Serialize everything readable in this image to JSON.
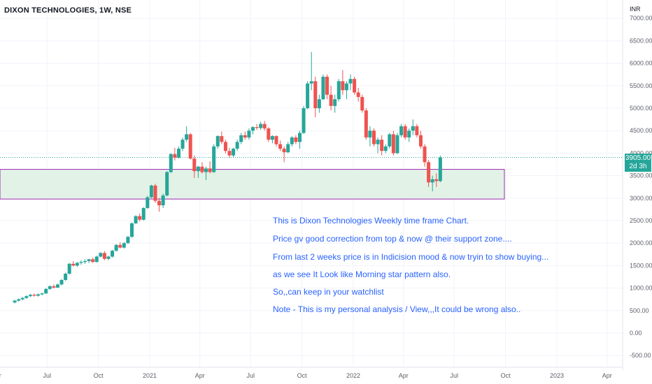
{
  "header": {
    "symbol_title": "DIXON TECHNOLOGIES, 1W, NSE"
  },
  "currency_label": "INR",
  "price_tag": {
    "price": "3905.00",
    "countdown": "2d 3h"
  },
  "annotations": [
    "This is Dixon Technologies Weekly time frame Chart.",
    "Price gv good correction from top & now @ their support zone....",
    "From last 2 weeks price is in Indicision mood & now tryin to show buying...",
    "as we see It Look like Morning star pattern also.",
    "So,,can keep in your watchlist",
    "Note - This is my personal analysis / View,,,It could be wrong also.."
  ],
  "colors": {
    "up": "#26a69a",
    "down": "#ef5350",
    "zone_fill": "#e3f2e6",
    "zone_border": "#9c27b0",
    "annotation": "#2962ff",
    "last_price_line": "#26a69a"
  },
  "chart_data": {
    "type": "candlestick",
    "interval": "1W",
    "currency": "INR",
    "y_ticks": [
      "7000.00",
      "6500.00",
      "6000.00",
      "5500.00",
      "5000.00",
      "4500.00",
      "4000.00",
      "3500.00",
      "3000.00",
      "2500.00",
      "2000.00",
      "1500.00",
      "1000.00",
      "500.00",
      "0.00",
      "-500.00"
    ],
    "x_ticks": [
      "Apr",
      "Jul",
      "Oct",
      "2021",
      "Apr",
      "Jul",
      "Oct",
      "2022",
      "Apr",
      "Jul",
      "Oct",
      "2023",
      "Apr"
    ],
    "ylim": [
      -700,
      7250
    ],
    "support_zone": {
      "low": 2980,
      "high": 3640
    },
    "last_price": 3905,
    "candles": [
      {
        "t": "2020-05-04",
        "o": 680,
        "h": 740,
        "l": 660,
        "c": 720
      },
      {
        "t": "2020-05-11",
        "o": 720,
        "h": 770,
        "l": 700,
        "c": 750
      },
      {
        "t": "2020-05-18",
        "o": 750,
        "h": 800,
        "l": 730,
        "c": 780
      },
      {
        "t": "2020-05-25",
        "o": 780,
        "h": 840,
        "l": 760,
        "c": 820
      },
      {
        "t": "2020-06-01",
        "o": 820,
        "h": 870,
        "l": 800,
        "c": 850
      },
      {
        "t": "2020-06-08",
        "o": 850,
        "h": 880,
        "l": 810,
        "c": 830
      },
      {
        "t": "2020-06-15",
        "o": 830,
        "h": 880,
        "l": 810,
        "c": 860
      },
      {
        "t": "2020-06-22",
        "o": 860,
        "h": 900,
        "l": 840,
        "c": 880
      },
      {
        "t": "2020-06-29",
        "o": 880,
        "h": 1000,
        "l": 870,
        "c": 980
      },
      {
        "t": "2020-07-06",
        "o": 980,
        "h": 1060,
        "l": 960,
        "c": 1040
      },
      {
        "t": "2020-07-13",
        "o": 1040,
        "h": 1080,
        "l": 990,
        "c": 1010
      },
      {
        "t": "2020-07-20",
        "o": 1010,
        "h": 1100,
        "l": 1000,
        "c": 1080
      },
      {
        "t": "2020-07-27",
        "o": 1080,
        "h": 1200,
        "l": 1060,
        "c": 1180
      },
      {
        "t": "2020-08-03",
        "o": 1180,
        "h": 1340,
        "l": 1160,
        "c": 1320
      },
      {
        "t": "2020-08-10",
        "o": 1320,
        "h": 1560,
        "l": 1300,
        "c": 1540
      },
      {
        "t": "2020-08-17",
        "o": 1540,
        "h": 1600,
        "l": 1480,
        "c": 1500
      },
      {
        "t": "2020-08-24",
        "o": 1500,
        "h": 1580,
        "l": 1470,
        "c": 1560
      },
      {
        "t": "2020-08-31",
        "o": 1560,
        "h": 1620,
        "l": 1520,
        "c": 1580
      },
      {
        "t": "2020-09-07",
        "o": 1580,
        "h": 1640,
        "l": 1540,
        "c": 1600
      },
      {
        "t": "2020-09-14",
        "o": 1600,
        "h": 1650,
        "l": 1560,
        "c": 1640
      },
      {
        "t": "2020-09-21",
        "o": 1640,
        "h": 1680,
        "l": 1560,
        "c": 1580
      },
      {
        "t": "2020-09-28",
        "o": 1580,
        "h": 1720,
        "l": 1570,
        "c": 1700
      },
      {
        "t": "2020-10-05",
        "o": 1700,
        "h": 1800,
        "l": 1680,
        "c": 1780
      },
      {
        "t": "2020-10-12",
        "o": 1780,
        "h": 1820,
        "l": 1620,
        "c": 1650
      },
      {
        "t": "2020-10-19",
        "o": 1650,
        "h": 1720,
        "l": 1620,
        "c": 1700
      },
      {
        "t": "2020-10-26",
        "o": 1700,
        "h": 1850,
        "l": 1680,
        "c": 1830
      },
      {
        "t": "2020-11-02",
        "o": 1830,
        "h": 1980,
        "l": 1810,
        "c": 1960
      },
      {
        "t": "2020-11-09",
        "o": 1960,
        "h": 2020,
        "l": 1880,
        "c": 1900
      },
      {
        "t": "2020-11-16",
        "o": 1900,
        "h": 2020,
        "l": 1880,
        "c": 2000
      },
      {
        "t": "2020-11-23",
        "o": 2000,
        "h": 2160,
        "l": 1980,
        "c": 2140
      },
      {
        "t": "2020-11-30",
        "o": 2140,
        "h": 2460,
        "l": 2120,
        "c": 2440
      },
      {
        "t": "2020-12-07",
        "o": 2440,
        "h": 2620,
        "l": 2420,
        "c": 2600
      },
      {
        "t": "2020-12-14",
        "o": 2600,
        "h": 2660,
        "l": 2480,
        "c": 2520
      },
      {
        "t": "2020-12-21",
        "o": 2520,
        "h": 2800,
        "l": 2500,
        "c": 2780
      },
      {
        "t": "2020-12-28",
        "o": 2780,
        "h": 3050,
        "l": 2760,
        "c": 3020
      },
      {
        "t": "2021-01-04",
        "o": 3020,
        "h": 3300,
        "l": 3000,
        "c": 3280
      },
      {
        "t": "2021-01-11",
        "o": 3280,
        "h": 3320,
        "l": 2900,
        "c": 2940
      },
      {
        "t": "2021-01-18",
        "o": 2940,
        "h": 3000,
        "l": 2700,
        "c": 2840
      },
      {
        "t": "2021-01-25",
        "o": 2840,
        "h": 3100,
        "l": 2780,
        "c": 3060
      },
      {
        "t": "2021-02-01",
        "o": 3060,
        "h": 3600,
        "l": 3040,
        "c": 3580
      },
      {
        "t": "2021-02-08",
        "o": 3580,
        "h": 4000,
        "l": 3560,
        "c": 3980
      },
      {
        "t": "2021-02-15",
        "o": 3980,
        "h": 4120,
        "l": 3840,
        "c": 3900
      },
      {
        "t": "2021-02-22",
        "o": 3900,
        "h": 4150,
        "l": 3880,
        "c": 4100
      },
      {
        "t": "2021-03-01",
        "o": 4100,
        "h": 4350,
        "l": 4050,
        "c": 4300
      },
      {
        "t": "2021-03-08",
        "o": 4300,
        "h": 4600,
        "l": 4250,
        "c": 4420
      },
      {
        "t": "2021-03-15",
        "o": 4420,
        "h": 4450,
        "l": 3860,
        "c": 3880
      },
      {
        "t": "2021-03-22",
        "o": 3880,
        "h": 3950,
        "l": 3450,
        "c": 3600
      },
      {
        "t": "2021-03-29",
        "o": 3600,
        "h": 3720,
        "l": 3450,
        "c": 3700
      },
      {
        "t": "2021-04-05",
        "o": 3700,
        "h": 3800,
        "l": 3550,
        "c": 3580
      },
      {
        "t": "2021-04-12",
        "o": 3580,
        "h": 3700,
        "l": 3400,
        "c": 3660
      },
      {
        "t": "2021-04-19",
        "o": 3660,
        "h": 3820,
        "l": 3550,
        "c": 3580
      },
      {
        "t": "2021-04-26",
        "o": 3580,
        "h": 4200,
        "l": 3560,
        "c": 4150
      },
      {
        "t": "2021-05-03",
        "o": 4150,
        "h": 4400,
        "l": 4100,
        "c": 4380
      },
      {
        "t": "2021-05-10",
        "o": 4380,
        "h": 4480,
        "l": 4200,
        "c": 4250
      },
      {
        "t": "2021-05-17",
        "o": 4250,
        "h": 4300,
        "l": 4000,
        "c": 4050
      },
      {
        "t": "2021-05-24",
        "o": 4050,
        "h": 4120,
        "l": 3900,
        "c": 3950
      },
      {
        "t": "2021-05-31",
        "o": 3950,
        "h": 4120,
        "l": 3900,
        "c": 4100
      },
      {
        "t": "2021-06-07",
        "o": 4100,
        "h": 4300,
        "l": 4050,
        "c": 4250
      },
      {
        "t": "2021-06-14",
        "o": 4250,
        "h": 4450,
        "l": 4200,
        "c": 4400
      },
      {
        "t": "2021-06-21",
        "o": 4400,
        "h": 4480,
        "l": 4300,
        "c": 4350
      },
      {
        "t": "2021-06-28",
        "o": 4350,
        "h": 4550,
        "l": 4300,
        "c": 4500
      },
      {
        "t": "2021-07-05",
        "o": 4500,
        "h": 4600,
        "l": 4420,
        "c": 4580
      },
      {
        "t": "2021-07-12",
        "o": 4580,
        "h": 4650,
        "l": 4520,
        "c": 4560
      },
      {
        "t": "2021-07-19",
        "o": 4560,
        "h": 4700,
        "l": 4520,
        "c": 4650
      },
      {
        "t": "2021-07-26",
        "o": 4650,
        "h": 4720,
        "l": 4500,
        "c": 4550
      },
      {
        "t": "2021-08-02",
        "o": 4550,
        "h": 4580,
        "l": 4250,
        "c": 4300
      },
      {
        "t": "2021-08-09",
        "o": 4300,
        "h": 4400,
        "l": 4220,
        "c": 4380
      },
      {
        "t": "2021-08-16",
        "o": 4380,
        "h": 4400,
        "l": 4150,
        "c": 4200
      },
      {
        "t": "2021-08-23",
        "o": 4200,
        "h": 4280,
        "l": 4050,
        "c": 4100
      },
      {
        "t": "2021-08-30",
        "o": 4100,
        "h": 4150,
        "l": 3800,
        "c": 4020
      },
      {
        "t": "2021-09-06",
        "o": 4020,
        "h": 4250,
        "l": 4000,
        "c": 4200
      },
      {
        "t": "2021-09-13",
        "o": 4200,
        "h": 4380,
        "l": 4150,
        "c": 4350
      },
      {
        "t": "2021-09-20",
        "o": 4350,
        "h": 4400,
        "l": 4200,
        "c": 4250
      },
      {
        "t": "2021-09-27",
        "o": 4250,
        "h": 4500,
        "l": 4100,
        "c": 4450
      },
      {
        "t": "2021-10-04",
        "o": 4450,
        "h": 5050,
        "l": 4430,
        "c": 5000
      },
      {
        "t": "2021-10-11",
        "o": 5000,
        "h": 5600,
        "l": 4980,
        "c": 5550
      },
      {
        "t": "2021-10-18",
        "o": 5550,
        "h": 6250,
        "l": 5400,
        "c": 5600
      },
      {
        "t": "2021-10-25",
        "o": 5600,
        "h": 5700,
        "l": 4800,
        "c": 5000
      },
      {
        "t": "2021-11-01",
        "o": 5000,
        "h": 5300,
        "l": 4900,
        "c": 5200
      },
      {
        "t": "2021-11-08",
        "o": 5200,
        "h": 5750,
        "l": 5180,
        "c": 5700
      },
      {
        "t": "2021-11-15",
        "o": 5700,
        "h": 5750,
        "l": 5200,
        "c": 5300
      },
      {
        "t": "2021-11-22",
        "o": 5300,
        "h": 5500,
        "l": 4950,
        "c": 5050
      },
      {
        "t": "2021-11-29",
        "o": 5050,
        "h": 5300,
        "l": 4900,
        "c": 5200
      },
      {
        "t": "2021-12-06",
        "o": 5200,
        "h": 5650,
        "l": 5150,
        "c": 5600
      },
      {
        "t": "2021-12-13",
        "o": 5600,
        "h": 5850,
        "l": 5300,
        "c": 5400
      },
      {
        "t": "2021-12-20",
        "o": 5400,
        "h": 5600,
        "l": 5200,
        "c": 5550
      },
      {
        "t": "2021-12-27",
        "o": 5550,
        "h": 5750,
        "l": 5400,
        "c": 5650
      },
      {
        "t": "2022-01-03",
        "o": 5650,
        "h": 5700,
        "l": 5300,
        "c": 5350
      },
      {
        "t": "2022-01-10",
        "o": 5350,
        "h": 5450,
        "l": 5150,
        "c": 5250
      },
      {
        "t": "2022-01-17",
        "o": 5250,
        "h": 5300,
        "l": 4900,
        "c": 4950
      },
      {
        "t": "2022-01-24",
        "o": 4950,
        "h": 5000,
        "l": 4300,
        "c": 4350
      },
      {
        "t": "2022-01-31",
        "o": 4350,
        "h": 4600,
        "l": 4150,
        "c": 4500
      },
      {
        "t": "2022-02-07",
        "o": 4500,
        "h": 4550,
        "l": 4150,
        "c": 4200
      },
      {
        "t": "2022-02-14",
        "o": 4200,
        "h": 4350,
        "l": 4000,
        "c": 4300
      },
      {
        "t": "2022-02-21",
        "o": 4300,
        "h": 4400,
        "l": 3950,
        "c": 4050
      },
      {
        "t": "2022-02-28",
        "o": 4050,
        "h": 4200,
        "l": 4000,
        "c": 4150
      },
      {
        "t": "2022-03-07",
        "o": 4150,
        "h": 4450,
        "l": 4100,
        "c": 4420
      },
      {
        "t": "2022-03-14",
        "o": 4420,
        "h": 4500,
        "l": 3950,
        "c": 4000
      },
      {
        "t": "2022-03-21",
        "o": 4000,
        "h": 4450,
        "l": 3980,
        "c": 4400
      },
      {
        "t": "2022-03-28",
        "o": 4400,
        "h": 4650,
        "l": 4350,
        "c": 4600
      },
      {
        "t": "2022-04-04",
        "o": 4600,
        "h": 4650,
        "l": 4300,
        "c": 4350
      },
      {
        "t": "2022-04-11",
        "o": 4350,
        "h": 4550,
        "l": 4250,
        "c": 4500
      },
      {
        "t": "2022-04-18",
        "o": 4500,
        "h": 4750,
        "l": 4400,
        "c": 4600
      },
      {
        "t": "2022-04-25",
        "o": 4600,
        "h": 4650,
        "l": 4350,
        "c": 4400
      },
      {
        "t": "2022-05-02",
        "o": 4400,
        "h": 4500,
        "l": 4100,
        "c": 4150
      },
      {
        "t": "2022-05-09",
        "o": 4150,
        "h": 4200,
        "l": 3700,
        "c": 3800
      },
      {
        "t": "2022-05-16",
        "o": 3800,
        "h": 3850,
        "l": 3250,
        "c": 3350
      },
      {
        "t": "2022-05-23",
        "o": 3350,
        "h": 3500,
        "l": 3150,
        "c": 3420
      },
      {
        "t": "2022-05-30",
        "o": 3420,
        "h": 3550,
        "l": 3250,
        "c": 3380
      },
      {
        "t": "2022-06-06",
        "o": 3380,
        "h": 3950,
        "l": 3350,
        "c": 3905
      }
    ]
  }
}
